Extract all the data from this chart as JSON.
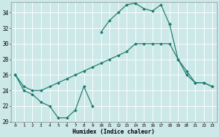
{
  "xlabel": "Humidex (Indice chaleur)",
  "line_top_x": [
    10,
    11,
    12,
    13,
    14,
    15,
    16,
    17,
    18
  ],
  "line_top_y": [
    31.5,
    33,
    34,
    35.0,
    35.2,
    34.5,
    34.2,
    35.0,
    32.5
  ],
  "line_mid_x": [
    0,
    1,
    2,
    3,
    4,
    5,
    6,
    7,
    8,
    9,
    10,
    11,
    12,
    13,
    14,
    15,
    16,
    17,
    18,
    19,
    20,
    21,
    22,
    23
  ],
  "line_mid_y": [
    26,
    24.5,
    24,
    24,
    24.5,
    25,
    25.5,
    26,
    26.5,
    27,
    27.5,
    28,
    28.5,
    29,
    30,
    30,
    30,
    30,
    30,
    28,
    26,
    25,
    25,
    24.5
  ],
  "line_bot_x": [
    0,
    1,
    2,
    3,
    4,
    5,
    6,
    7,
    8,
    9
  ],
  "line_bot_y": [
    26,
    24,
    23.5,
    22.5,
    22,
    20.5,
    20.5,
    21.5,
    24.5,
    22
  ],
  "line_right_x": [
    18,
    19,
    20,
    21,
    22,
    23
  ],
  "line_right_y": [
    32.5,
    28,
    26.5,
    25,
    25,
    24.5
  ],
  "ylim": [
    20,
    35
  ],
  "xlim": [
    -0.5,
    23.5
  ],
  "yticks": [
    20,
    22,
    24,
    26,
    28,
    30,
    32,
    34
  ],
  "xticks": [
    0,
    1,
    2,
    3,
    4,
    5,
    6,
    7,
    8,
    9,
    10,
    11,
    12,
    13,
    14,
    15,
    16,
    17,
    18,
    19,
    20,
    21,
    22,
    23
  ],
  "line_color": "#1a7a6e",
  "bg_color": "#cce8e8",
  "grid_color": "#ffffff"
}
